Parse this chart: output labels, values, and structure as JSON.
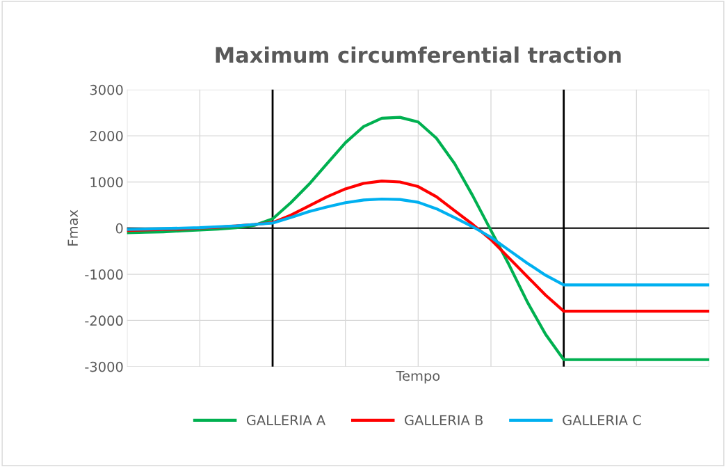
{
  "chart_data": {
    "type": "line",
    "title": "Maximum circumferential traction",
    "xlabel": "Tempo",
    "ylabel": "Fmax",
    "categories": [
      null,
      null,
      null,
      null,
      null,
      null,
      null,
      null,
      null,
      null,
      null,
      null,
      null,
      null,
      null,
      null,
      null,
      null,
      null,
      null,
      null,
      null,
      null,
      null,
      null,
      null,
      null,
      null,
      null,
      null,
      null,
      null,
      null
    ],
    "series": [
      {
        "name": "GALLERIA A",
        "color": "#00b050",
        "values": [
          -100,
          -90,
          -80,
          -60,
          -40,
          -20,
          10,
          60,
          200,
          550,
          950,
          1400,
          1850,
          2200,
          2380,
          2400,
          2300,
          1950,
          1400,
          700,
          -50,
          -800,
          -1600,
          -2300,
          -2850,
          -2850,
          -2850,
          -2850,
          -2850,
          -2850,
          -2850,
          -2850,
          -2850
        ]
      },
      {
        "name": "GALLERIA B",
        "color": "#ff0000",
        "values": [
          -50,
          -40,
          -30,
          -20,
          0,
          20,
          50,
          80,
          120,
          280,
          480,
          680,
          850,
          970,
          1020,
          1000,
          900,
          680,
          380,
          80,
          -250,
          -650,
          -1050,
          -1450,
          -1800,
          -1800,
          -1800,
          -1800,
          -1800,
          -1800,
          -1800,
          -1800,
          -1800
        ]
      },
      {
        "name": "GALLERIA C",
        "color": "#00b0f0",
        "values": [
          -30,
          -20,
          -10,
          0,
          10,
          30,
          50,
          80,
          110,
          230,
          360,
          460,
          550,
          610,
          630,
          620,
          560,
          420,
          230,
          30,
          -200,
          -480,
          -760,
          -1020,
          -1230,
          -1230,
          -1230,
          -1230,
          -1230,
          -1230,
          -1230,
          -1230,
          -1230
        ]
      }
    ],
    "ylim": [
      -3000,
      3000
    ],
    "yticks": [
      -3000,
      -2000,
      -1000,
      0,
      1000,
      2000,
      3000
    ],
    "grid": true,
    "legend": "bottom",
    "tick_labels": "y",
    "line_style": "solid",
    "marker": "none"
  }
}
